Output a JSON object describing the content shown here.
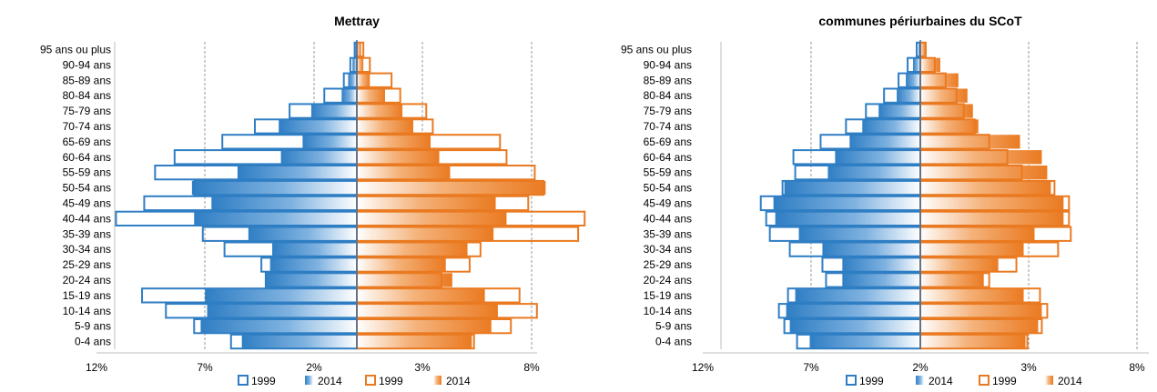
{
  "colors": {
    "male": "#2f7ec4",
    "female": "#ea7a21"
  },
  "chart_data": [
    {
      "type": "bar",
      "orientation": "horizontal-pyramid",
      "title": "Mettray",
      "categories": [
        "0-4 ans",
        "5-9 ans",
        "10-14 ans",
        "15-19 ans",
        "20-24 ans",
        "25-29 ans",
        "30-34 ans",
        "35-39 ans",
        "40-44 ans",
        "45-49 ans",
        "50-54 ans",
        "55-59 ans",
        "60-64 ans",
        "65-69 ans",
        "70-74 ans",
        "75-79 ans",
        "80-84 ans",
        "85-89 ans",
        "90-94 ans",
        "95 ans ou plus"
      ],
      "xticks": [
        "12%",
        "7%",
        "2%",
        "3%",
        "8%"
      ],
      "xlim": [
        -12,
        12
      ],
      "grid": true,
      "series": [
        {
          "name": "1999",
          "side": "male",
          "style": "outline",
          "values": [
            5.8,
            7.5,
            8.8,
            9.9,
            4.2,
            4.4,
            6.1,
            7.1,
            11.1,
            9.8,
            7.5,
            9.3,
            8.4,
            6.2,
            4.7,
            3.1,
            1.5,
            0.6,
            0.3,
            0.1
          ]
        },
        {
          "name": "2014",
          "side": "male",
          "style": "gradient",
          "values": [
            5.3,
            7.2,
            6.9,
            7.0,
            4.2,
            4.0,
            3.9,
            5.0,
            7.5,
            6.7,
            7.6,
            5.5,
            3.5,
            2.5,
            3.6,
            2.1,
            0.7,
            0.4,
            0.2,
            0.1
          ]
        },
        {
          "name": "1999",
          "side": "female",
          "style": "outline",
          "values": [
            5.4,
            7.1,
            8.3,
            7.5,
            3.9,
            5.2,
            5.7,
            10.2,
            10.5,
            7.9,
            8.6,
            8.2,
            6.9,
            6.6,
            3.5,
            3.2,
            2.0,
            1.6,
            0.6,
            0.3
          ]
        },
        {
          "name": "2014",
          "side": "female",
          "style": "gradient",
          "values": [
            5.3,
            6.2,
            6.5,
            5.9,
            4.4,
            4.1,
            5.1,
            6.3,
            6.9,
            6.4,
            8.7,
            4.3,
            3.8,
            3.4,
            2.6,
            2.1,
            1.3,
            0.6,
            0.3,
            0.2
          ]
        }
      ],
      "legend": {
        "position": "bottom",
        "labels": [
          "1999",
          "2014",
          "1999",
          "2014"
        ]
      }
    },
    {
      "type": "bar",
      "orientation": "horizontal-pyramid",
      "title": "communes périurbaines du SCoT",
      "categories": [
        "0-4 ans",
        "5-9 ans",
        "10-14 ans",
        "15-19 ans",
        "20-24 ans",
        "25-29 ans",
        "30-34 ans",
        "35-39 ans",
        "40-44 ans",
        "45-49 ans",
        "50-54 ans",
        "55-59 ans",
        "60-64 ans",
        "65-69 ans",
        "70-74 ans",
        "75-79 ans",
        "80-84 ans",
        "85-89 ans",
        "90-94 ans",
        "95 ans ou plus"
      ],
      "xticks": [
        "12%",
        "7%",
        "2%",
        "3%",
        "8%"
      ],
      "xlim": [
        -12,
        8.5
      ],
      "grid": true,
      "series": [
        {
          "name": "1999",
          "side": "male",
          "style": "outline",
          "values": [
            6.8,
            7.5,
            7.8,
            7.3,
            5.2,
            5.4,
            7.2,
            8.3,
            8.5,
            8.8,
            7.6,
            6.9,
            7.0,
            5.5,
            4.1,
            3.0,
            2.0,
            1.2,
            0.7,
            0.2
          ]
        },
        {
          "name": "2014",
          "side": "male",
          "style": "gradient",
          "values": [
            6.1,
            7.2,
            7.4,
            6.9,
            4.3,
            4.3,
            5.4,
            6.7,
            8.0,
            8.1,
            7.5,
            5.1,
            4.7,
            3.9,
            3.2,
            2.3,
            1.3,
            0.8,
            0.4,
            0.1
          ]
        },
        {
          "name": "1999",
          "side": "female",
          "style": "outline",
          "values": [
            5.9,
            6.7,
            7.0,
            6.6,
            3.8,
            5.3,
            7.6,
            8.3,
            8.2,
            8.2,
            7.4,
            5.6,
            4.8,
            3.8,
            3.0,
            2.4,
            2.0,
            1.4,
            0.8,
            0.3
          ]
        },
        {
          "name": "2014",
          "side": "female",
          "style": "gradient",
          "values": [
            5.8,
            6.5,
            6.7,
            5.7,
            3.5,
            4.3,
            5.7,
            6.3,
            7.9,
            7.9,
            7.2,
            7.0,
            6.7,
            5.5,
            3.2,
            2.9,
            2.6,
            2.1,
            1.1,
            0.3
          ]
        }
      ],
      "legend": {
        "position": "bottom",
        "labels": [
          "1999",
          "2014",
          "1999",
          "2014"
        ]
      }
    }
  ]
}
